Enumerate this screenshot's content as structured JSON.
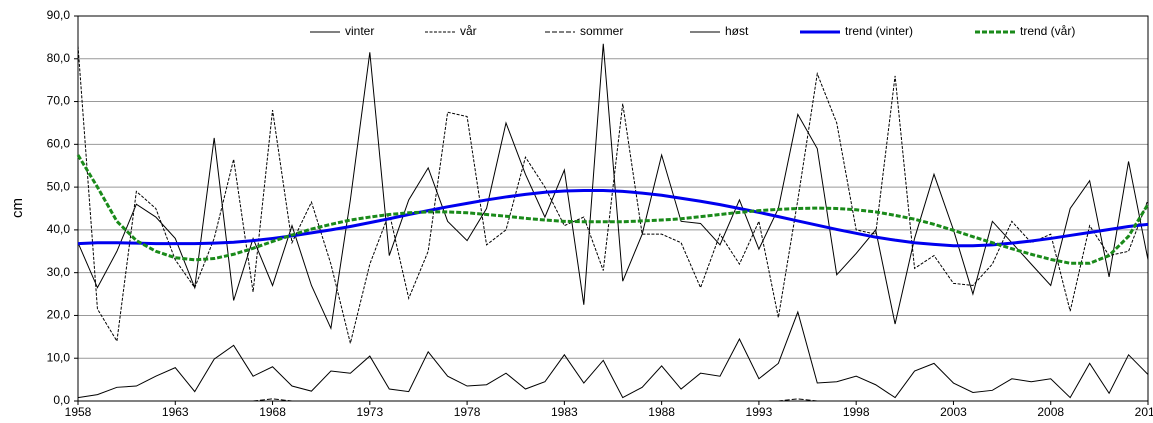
{
  "chart_data": {
    "type": "line",
    "y_label": "cm",
    "x": [
      1958,
      1959,
      1960,
      1961,
      1962,
      1963,
      1964,
      1965,
      1966,
      1967,
      1968,
      1969,
      1970,
      1971,
      1972,
      1973,
      1974,
      1975,
      1976,
      1977,
      1978,
      1979,
      1980,
      1981,
      1982,
      1983,
      1984,
      1985,
      1986,
      1987,
      1988,
      1989,
      1990,
      1991,
      1992,
      1993,
      1994,
      1995,
      1996,
      1997,
      1998,
      1999,
      2000,
      2001,
      2002,
      2003,
      2004,
      2005,
      2006,
      2007,
      2008,
      2009,
      2010,
      2011,
      2012,
      2013
    ],
    "xlim": [
      1958,
      2013
    ],
    "xticks": [
      1958,
      1963,
      1968,
      1973,
      1978,
      1983,
      1988,
      1993,
      1998,
      2003,
      2008,
      2013
    ],
    "ylim": [
      0,
      90
    ],
    "yticks": [
      {
        "value": 0,
        "label": "0,0"
      },
      {
        "value": 10,
        "label": "10,0"
      },
      {
        "value": 20,
        "label": "20,0"
      },
      {
        "value": 30,
        "label": "30,0"
      },
      {
        "value": 40,
        "label": "40,0"
      },
      {
        "value": 50,
        "label": "50,0"
      },
      {
        "value": 60,
        "label": "60,0"
      },
      {
        "value": 70,
        "label": "70,0"
      },
      {
        "value": 80,
        "label": "80,0"
      },
      {
        "value": 90,
        "label": "90,0"
      }
    ],
    "grid": true,
    "legend": "top",
    "series": [
      {
        "name": "vinter",
        "color": "#000000",
        "style": "solid",
        "bold": false,
        "values": [
          37,
          26.5,
          35,
          46,
          43,
          38,
          26.5,
          61.5,
          23.5,
          38,
          27,
          41,
          27,
          17,
          47,
          81.5,
          34,
          47,
          54.5,
          42,
          37.5,
          45,
          65,
          53,
          43,
          54,
          22.5,
          83.5,
          28,
          39,
          57.5,
          42,
          41.5,
          36.5,
          47,
          35.5,
          45,
          67,
          59,
          29.5,
          34.5,
          40,
          18,
          38,
          53,
          40,
          25,
          42,
          37,
          32,
          27,
          45,
          51.5,
          29,
          56,
          33
        ]
      },
      {
        "name": "vår",
        "color": "#000000",
        "style": "dotted",
        "bold": false,
        "values": [
          83,
          21.5,
          14,
          49,
          45,
          33,
          26.5,
          38,
          56.5,
          25.5,
          68,
          37,
          46.5,
          32,
          13.5,
          32,
          44,
          24,
          35,
          67.5,
          66.5,
          36.5,
          40,
          57,
          50,
          41,
          43,
          30.5,
          69.5,
          39,
          39,
          37,
          26.5,
          39,
          32,
          42,
          19.5,
          47,
          76.5,
          65,
          40,
          39,
          76,
          31,
          34,
          27.5,
          27,
          32,
          42,
          37,
          39,
          21,
          41,
          34,
          35,
          47
        ]
      },
      {
        "name": "sommer",
        "color": "#000000",
        "style": "dashed",
        "bold": false,
        "values": [
          0,
          0,
          0,
          0,
          0,
          0,
          0,
          0,
          0,
          0,
          0.5,
          0,
          0,
          0,
          0,
          0,
          0,
          0,
          0,
          0,
          0,
          0,
          0,
          0,
          0,
          0,
          0,
          0,
          0,
          0,
          0,
          0,
          0,
          0,
          0,
          0,
          0,
          0.5,
          0,
          0,
          0,
          0,
          0,
          0,
          0,
          0,
          0,
          0,
          0,
          0,
          0,
          0,
          0,
          0,
          0,
          0
        ]
      },
      {
        "name": "høst",
        "color": "#000000",
        "style": "solid",
        "bold": false,
        "values": [
          0.8,
          1.5,
          3.2,
          3.5,
          5.8,
          7.8,
          2.2,
          9.8,
          13,
          5.8,
          8,
          3.5,
          2.3,
          7,
          6.5,
          10.5,
          2.8,
          2.2,
          11.5,
          5.8,
          3.5,
          3.8,
          6.5,
          2.8,
          4.5,
          10.8,
          4.2,
          9.5,
          0.8,
          3.2,
          8.2,
          2.8,
          6.5,
          5.8,
          14.5,
          5.2,
          8.8,
          20.8,
          4.2,
          4.5,
          5.8,
          3.8,
          0.8,
          7,
          8.8,
          4.2,
          2,
          2.5,
          5.2,
          4.5,
          5.2,
          0.8,
          8.8,
          1.8,
          10.8,
          6.2
        ]
      },
      {
        "name": "trend (vinter)",
        "color": "#0000ee",
        "style": "solid",
        "bold": true,
        "values": [
          36.8,
          37,
          37,
          36.9,
          36.8,
          36.8,
          36.8,
          36.9,
          37.1,
          37.5,
          38,
          38.6,
          39.3,
          40,
          40.8,
          41.7,
          42.6,
          43.6,
          44.5,
          45.4,
          46.2,
          47,
          47.7,
          48.3,
          48.8,
          49.1,
          49.2,
          49.2,
          49,
          48.6,
          48.1,
          47.4,
          46.7,
          45.9,
          45,
          44.1,
          43.1,
          42.1,
          41.1,
          40.1,
          39.2,
          38.3,
          37.6,
          37,
          36.6,
          36.3,
          36.3,
          36.5,
          36.9,
          37.4,
          38,
          38.7,
          39.4,
          40.1,
          40.8,
          41.3
        ]
      },
      {
        "name": "trend (vår)",
        "color": "#1a8a1a",
        "style": "dashed",
        "bold": true,
        "values": [
          57.5,
          50,
          42,
          37.5,
          35,
          33.5,
          33,
          33.3,
          34.3,
          35.7,
          37.3,
          38.8,
          40.2,
          41.3,
          42.3,
          43,
          43.6,
          44,
          44.2,
          44.2,
          44,
          43.6,
          43.2,
          42.7,
          42.3,
          42,
          41.9,
          41.9,
          41.9,
          42.1,
          42.3,
          42.6,
          43.1,
          43.6,
          44.1,
          44.5,
          44.8,
          45,
          45.1,
          45,
          44.7,
          44.2,
          43.4,
          42.5,
          41.3,
          39.9,
          38.4,
          37,
          35.6,
          34.3,
          33.1,
          32.2,
          32.2,
          34,
          38.5,
          46
        ]
      }
    ]
  }
}
